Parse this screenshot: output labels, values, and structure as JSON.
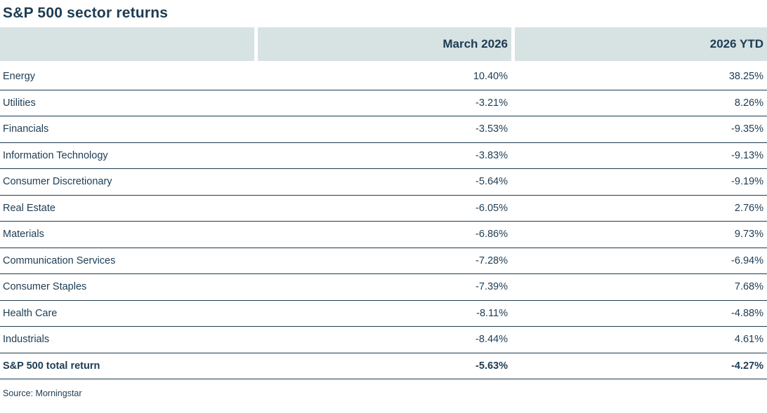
{
  "page": {
    "title": "S&P 500 sector returns",
    "source": "Source: Morningstar"
  },
  "colors": {
    "header_bg": "#d7e2e3",
    "text": "#1d3c53",
    "line": "#1d3c50",
    "background": "#ffffff"
  },
  "chart_data": {
    "type": "table",
    "title": "S&P 500 sector returns",
    "columns": [
      "",
      "March 2026",
      "2026 YTD"
    ],
    "rows": [
      {
        "sector": "Energy",
        "march_2026": "10.40%",
        "ytd_2026": "38.25%"
      },
      {
        "sector": "Utilities",
        "march_2026": "-3.21%",
        "ytd_2026": "8.26%"
      },
      {
        "sector": "Financials",
        "march_2026": "-3.53%",
        "ytd_2026": "-9.35%"
      },
      {
        "sector": "Information Technology",
        "march_2026": "-3.83%",
        "ytd_2026": "-9.13%"
      },
      {
        "sector": "Consumer Discretionary",
        "march_2026": "-5.64%",
        "ytd_2026": "-9.19%"
      },
      {
        "sector": "Real Estate",
        "march_2026": "-6.05%",
        "ytd_2026": "2.76%"
      },
      {
        "sector": "Materials",
        "march_2026": "-6.86%",
        "ytd_2026": "9.73%"
      },
      {
        "sector": "Communication Services",
        "march_2026": "-7.28%",
        "ytd_2026": "-6.94%"
      },
      {
        "sector": "Consumer Staples",
        "march_2026": "-7.39%",
        "ytd_2026": "7.68%"
      },
      {
        "sector": "Health Care",
        "march_2026": "-8.11%",
        "ytd_2026": "-4.88%"
      },
      {
        "sector": "Industrials",
        "march_2026": "-8.44%",
        "ytd_2026": "4.61%"
      }
    ],
    "total_row": {
      "sector": "S&P 500 total return",
      "march_2026": "-5.63%",
      "ytd_2026": "-4.27%"
    }
  }
}
